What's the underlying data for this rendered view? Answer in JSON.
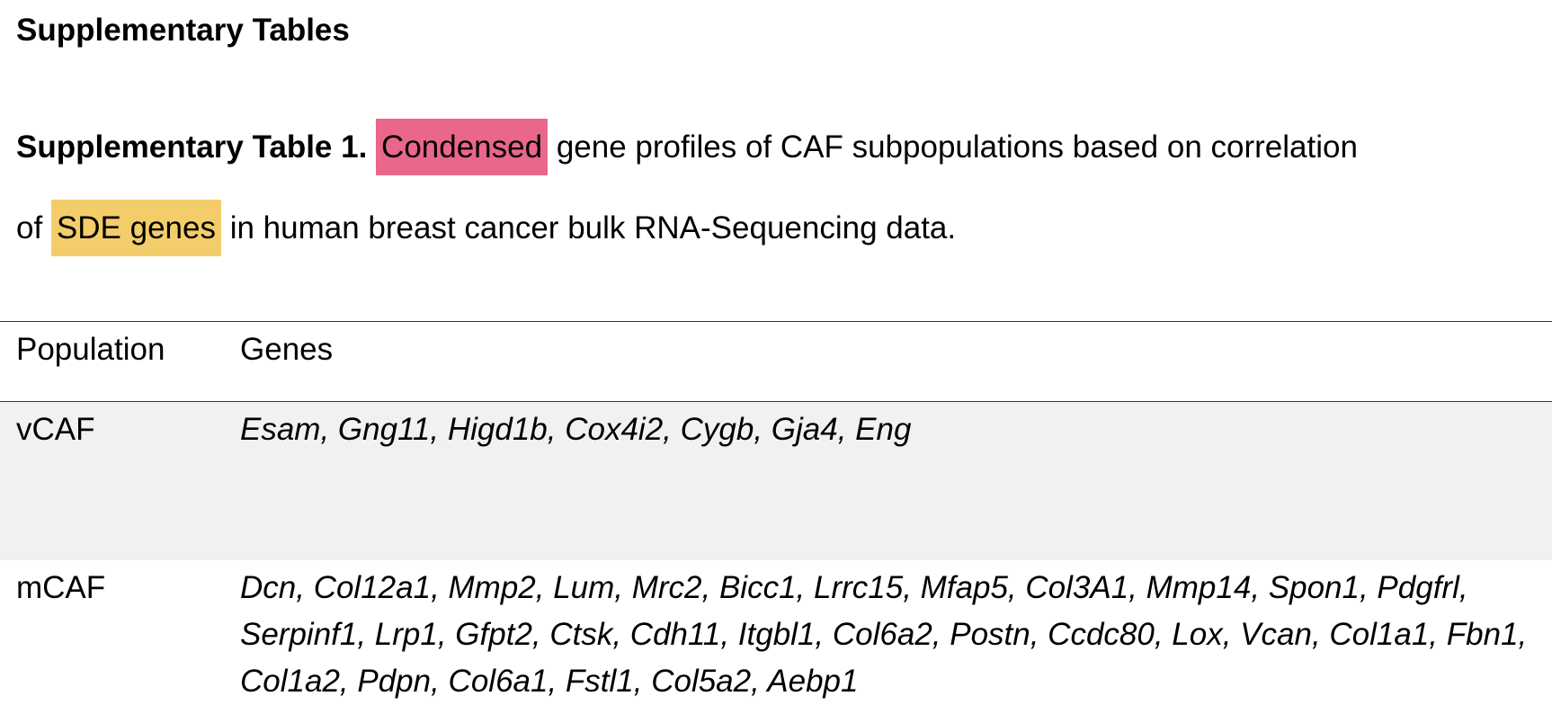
{
  "heading": "Supplementary Tables",
  "caption": {
    "label": "Supplementary Table 1.",
    "highlight_1": "Condensed",
    "text_1": " gene profiles of CAF subpopulations based on correlation",
    "text_2": "of ",
    "highlight_2": "SDE genes",
    "text_3": " in human breast cancer bulk RNA-Sequencing data."
  },
  "table": {
    "headers": [
      "Population",
      "Genes"
    ],
    "rows": [
      {
        "population": "vCAF",
        "genes": "Esam, Gng11, Higd1b, Cox4i2, Cygb, Gja4, Eng"
      },
      {
        "population": "mCAF",
        "genes": "Dcn, Col12a1, Mmp2, Lum, Mrc2, Bicc1, Lrrc15, Mfap5, Col3A1, Mmp14, Spon1, Pdgfrl, Serpinf1, Lrp1, Gfpt2, Ctsk, Cdh11, Itgbl1, Col6a2, Postn, Ccdc80, Lox, Vcan, Col1a1, Fbn1, Col1a2, Pdpn, Col6a1, Fstl1, Col5a2, Aebp1"
      }
    ]
  },
  "colors": {
    "highlight_red": "#e9678b",
    "highlight_yellow": "#f3cd69",
    "shaded_row": "#f1f1f1"
  }
}
